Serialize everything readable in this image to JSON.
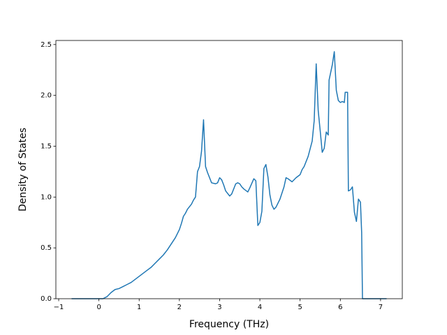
{
  "chart_data": {
    "type": "line",
    "xlabel": "Frequency (THz)",
    "ylabel": "Density of States",
    "color": "#1f77b4",
    "x": [
      -0.68,
      0.1,
      0.2,
      0.3,
      0.4,
      0.5,
      0.6,
      0.7,
      0.8,
      0.9,
      1.0,
      1.1,
      1.2,
      1.3,
      1.4,
      1.5,
      1.6,
      1.7,
      1.8,
      1.9,
      2.0,
      2.05,
      2.1,
      2.15,
      2.2,
      2.3,
      2.35,
      2.4,
      2.45,
      2.5,
      2.55,
      2.6,
      2.65,
      2.7,
      2.8,
      2.9,
      2.95,
      3.0,
      3.05,
      3.1,
      3.15,
      3.25,
      3.3,
      3.4,
      3.45,
      3.5,
      3.55,
      3.6,
      3.7,
      3.75,
      3.85,
      3.9,
      3.95,
      4.0,
      4.05,
      4.1,
      4.15,
      4.2,
      4.25,
      4.3,
      4.35,
      4.4,
      4.5,
      4.6,
      4.65,
      4.7,
      4.8,
      4.9,
      5.0,
      5.05,
      5.1,
      5.2,
      5.3,
      5.35,
      5.4,
      5.45,
      5.5,
      5.55,
      5.6,
      5.65,
      5.7,
      5.72,
      5.8,
      5.85,
      5.9,
      5.95,
      6.0,
      6.05,
      6.1,
      6.12,
      6.18,
      6.2,
      6.25,
      6.3,
      6.35,
      6.4,
      6.45,
      6.5,
      6.53,
      6.55,
      7.15
    ],
    "values": [
      0,
      0,
      0.02,
      0.06,
      0.09,
      0.1,
      0.12,
      0.14,
      0.16,
      0.19,
      0.22,
      0.25,
      0.28,
      0.31,
      0.35,
      0.39,
      0.43,
      0.48,
      0.54,
      0.6,
      0.68,
      0.74,
      0.81,
      0.84,
      0.88,
      0.93,
      0.97,
      1.0,
      1.25,
      1.3,
      1.45,
      1.76,
      1.3,
      1.24,
      1.14,
      1.13,
      1.14,
      1.19,
      1.17,
      1.12,
      1.06,
      1.01,
      1.03,
      1.13,
      1.14,
      1.13,
      1.1,
      1.08,
      1.05,
      1.09,
      1.18,
      1.16,
      0.72,
      0.75,
      0.86,
      1.28,
      1.32,
      1.2,
      1.02,
      0.92,
      0.88,
      0.9,
      0.98,
      1.1,
      1.19,
      1.18,
      1.15,
      1.19,
      1.22,
      1.27,
      1.3,
      1.4,
      1.55,
      1.75,
      2.31,
      1.85,
      1.65,
      1.44,
      1.48,
      1.64,
      1.61,
      2.15,
      2.3,
      2.43,
      2.05,
      1.95,
      1.93,
      1.94,
      1.93,
      2.03,
      2.03,
      1.06,
      1.07,
      1.1,
      0.85,
      0.76,
      0.98,
      0.95,
      0.65,
      0,
      0
    ],
    "xlim": [
      -1.07,
      7.54
    ],
    "ylim": [
      0,
      2.54
    ],
    "xticks": [
      {
        "value": -1,
        "label": "−1"
      },
      0,
      1,
      2,
      3,
      4,
      5,
      6,
      7
    ],
    "yticks": [
      {
        "value": 0,
        "label": "0.0"
      },
      0.5,
      {
        "value": 1,
        "label": "1.0"
      },
      1.5,
      {
        "value": 2,
        "label": "2.0"
      },
      2.5
    ]
  }
}
